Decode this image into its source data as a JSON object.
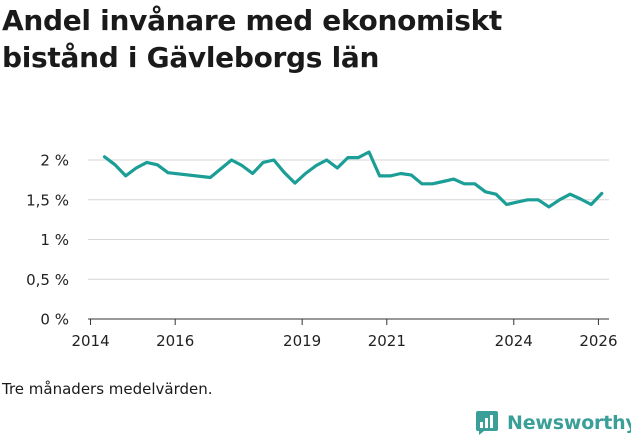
{
  "title": "Andel invånare med ekonomiskt bistånd i Gävleborgs län",
  "note": "Tre månaders medelvärden.",
  "brand": {
    "name": "Newsworthy",
    "logo_icon": "newsworthy-bar-chart-logo",
    "color": "#3a9f98"
  },
  "chart_data": {
    "type": "line",
    "title": "Andel invånare med ekonomiskt bistånd i Gävleborgs län",
    "xlabel": "",
    "ylabel": "",
    "xlim": [
      2013.94,
      2026.25
    ],
    "ylim": [
      0,
      2
    ],
    "x_ticks": [
      {
        "value": 2014,
        "label": "2014"
      },
      {
        "value": 2016,
        "label": "2016"
      },
      {
        "value": 2019,
        "label": "2019"
      },
      {
        "value": 2021,
        "label": "2021"
      },
      {
        "value": 2024,
        "label": "2024"
      },
      {
        "value": 2026,
        "label": "2026"
      }
    ],
    "y_ticks": [
      {
        "value": 0,
        "label": "0 %"
      },
      {
        "value": 0.5,
        "label": "0,5 %"
      },
      {
        "value": 1,
        "label": "1 %"
      },
      {
        "value": 1.5,
        "label": "1,5 %"
      },
      {
        "value": 2,
        "label": "2 %"
      }
    ],
    "grid": true,
    "line_color": "#1a9e96",
    "series": [
      {
        "x": [
          2014.33,
          2014.58,
          2014.83,
          2015.08,
          2015.33,
          2015.58,
          2015.83,
          2016.83,
          2017.33,
          2017.58,
          2017.83,
          2018.08,
          2018.33,
          2018.58,
          2018.83,
          2019.08,
          2019.33,
          2019.58,
          2019.83,
          2020.08,
          2020.33,
          2020.58,
          2020.83,
          2021.08,
          2021.33,
          2021.58,
          2021.83,
          2022.08,
          2022.33,
          2022.58,
          2022.83,
          2023.08,
          2023.33,
          2023.58,
          2023.83,
          2024.08,
          2024.33,
          2024.58,
          2024.83,
          2025.08,
          2025.33,
          2025.58,
          2025.83,
          2026.08
        ],
        "values": [
          2.04,
          1.94,
          1.8,
          1.9,
          1.97,
          1.94,
          1.84,
          1.78,
          2.0,
          1.93,
          1.83,
          1.97,
          2.0,
          1.84,
          1.71,
          1.83,
          1.93,
          2.0,
          1.9,
          2.03,
          2.03,
          2.1,
          1.8,
          1.8,
          1.83,
          1.81,
          1.7,
          1.7,
          1.73,
          1.76,
          1.7,
          1.7,
          1.6,
          1.57,
          1.44,
          1.47,
          1.5,
          1.5,
          1.41,
          1.5,
          1.57,
          1.51,
          1.44,
          1.58
        ]
      }
    ]
  }
}
